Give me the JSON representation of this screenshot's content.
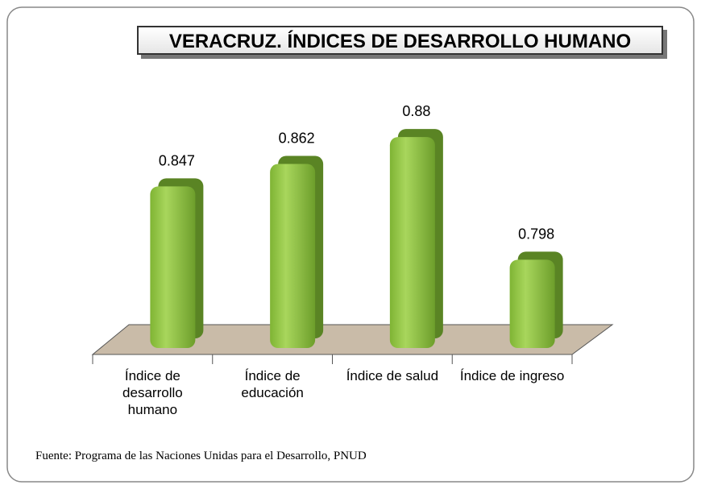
{
  "chart_data": {
    "type": "bar",
    "title": "VERACRUZ. ÍNDICES DE DESARROLLO HUMANO",
    "categories": [
      "Índice de desarrollo humano",
      "Índice de educación",
      "Índice de salud",
      "Índice de ingreso"
    ],
    "values": [
      0.847,
      0.862,
      0.88,
      0.798
    ],
    "color": "#8cc63f",
    "ylim": [
      0.74,
      0.9
    ],
    "source": "Fuente: Programa de las Naciones Unidas para el Desarrollo, PNUD"
  }
}
